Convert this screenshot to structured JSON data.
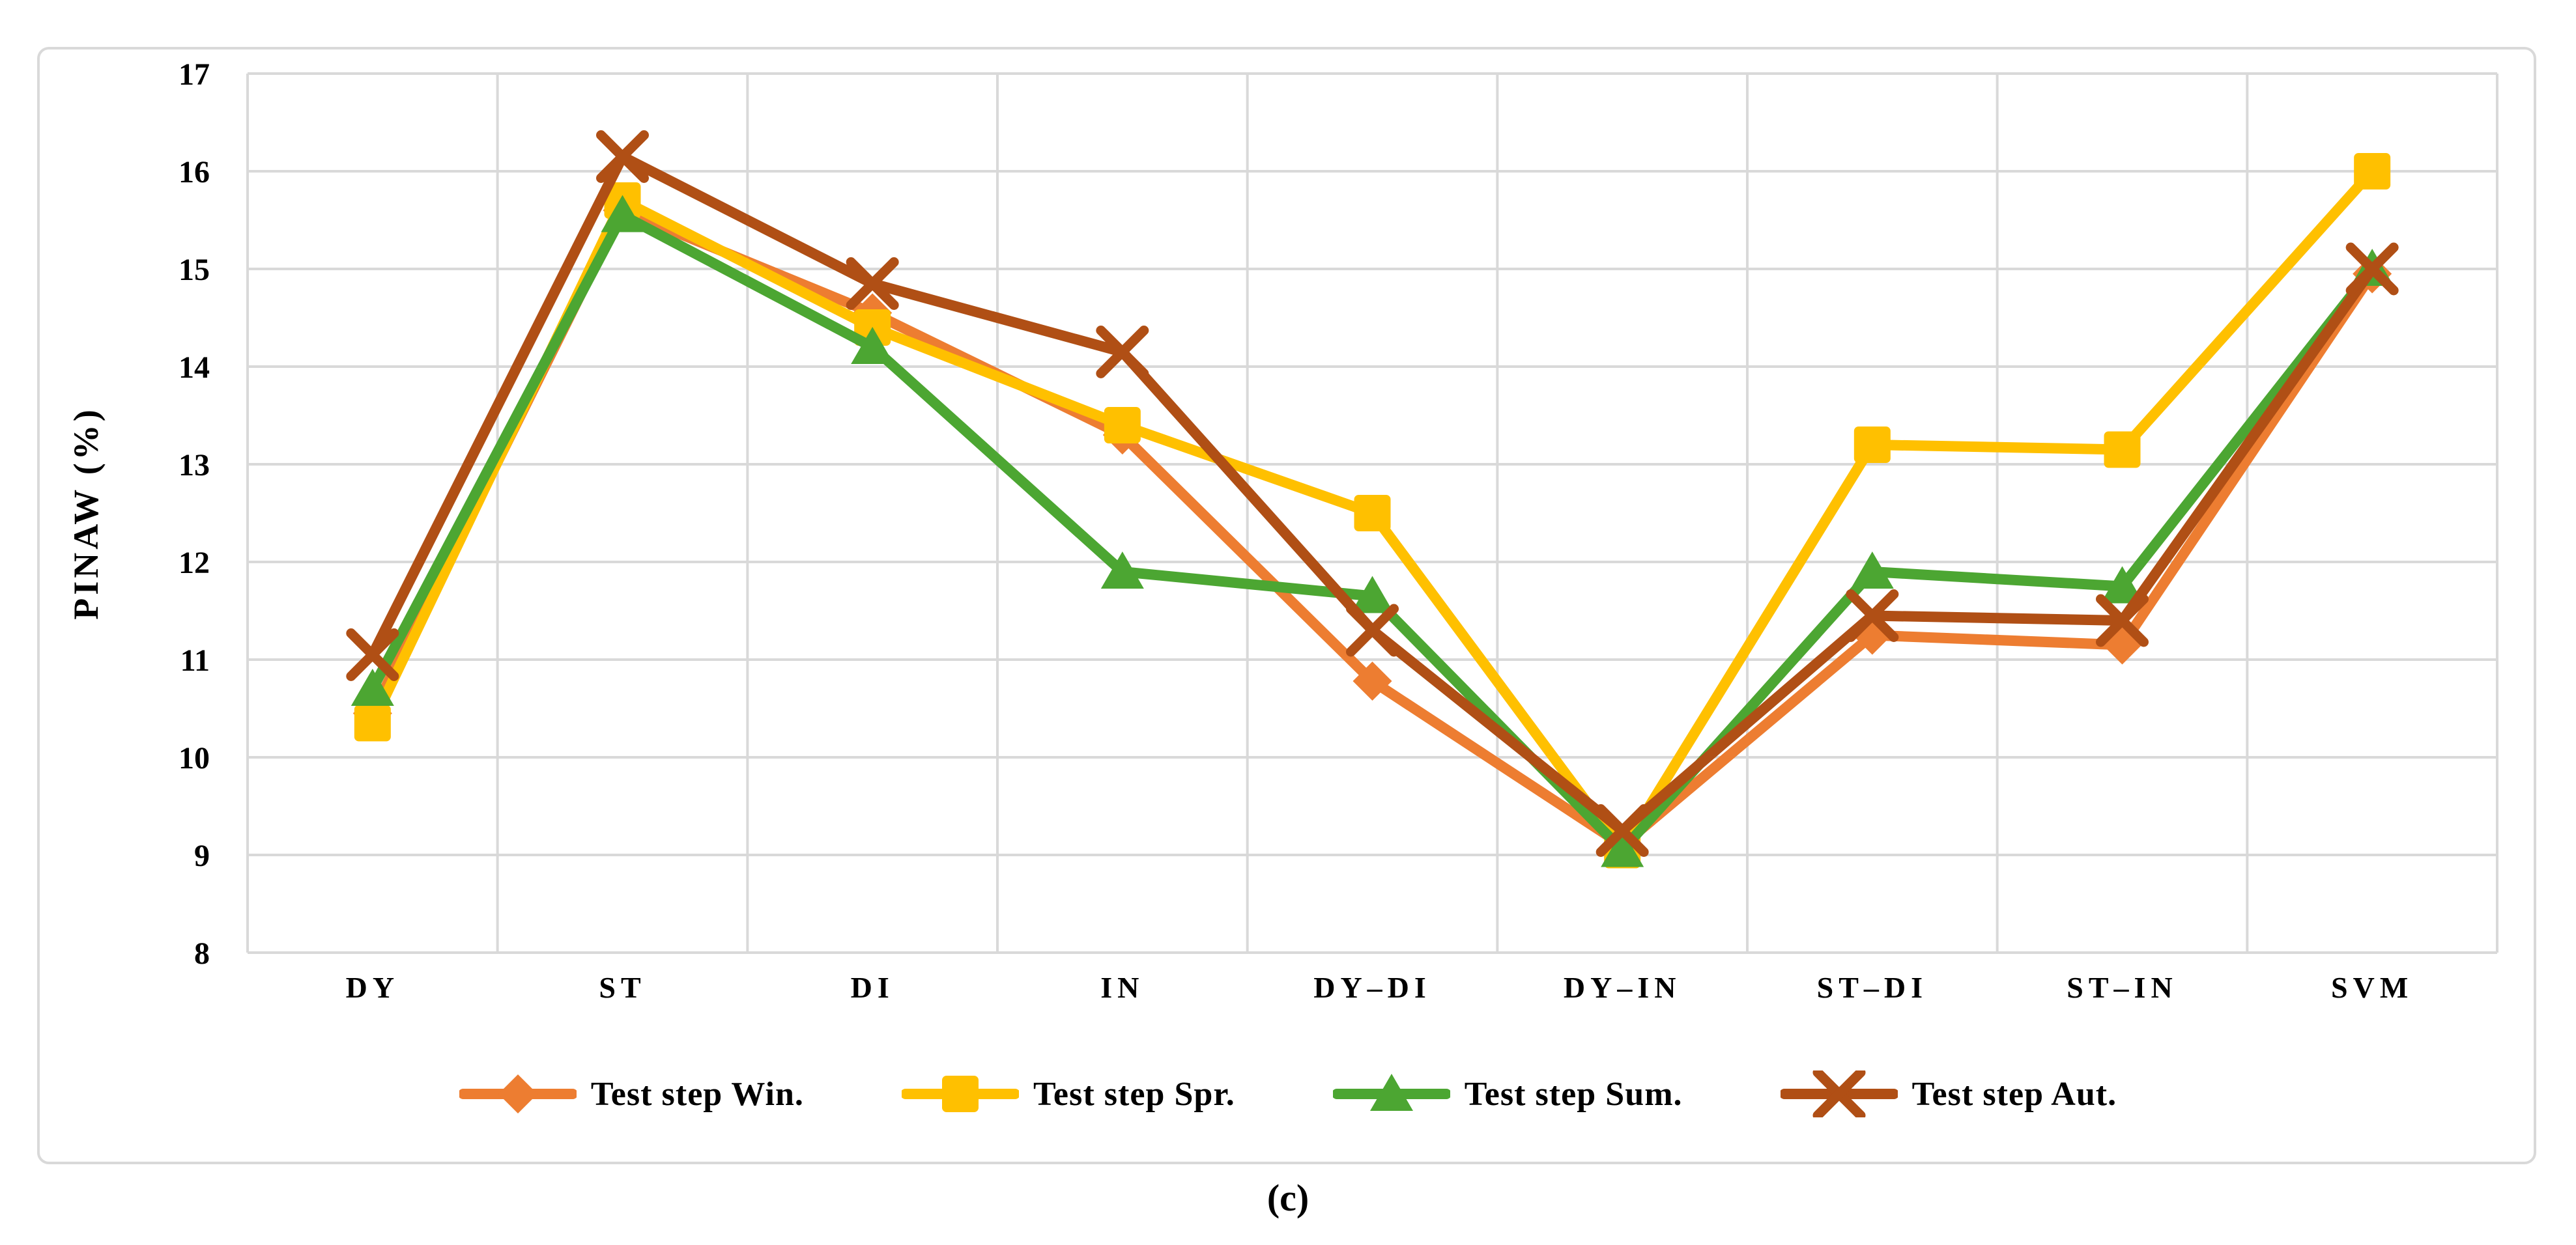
{
  "figure": {
    "caption": "(c)"
  },
  "chart_data": {
    "type": "line",
    "title": "",
    "xlabel": "",
    "ylabel": "PINAW (%)",
    "ylim": [
      8,
      17
    ],
    "ytick_step": 1,
    "grid": true,
    "legend_position": "bottom",
    "gridline_color": "#d9d9d9",
    "categories": [
      "DY",
      "ST",
      "DI",
      "IN",
      "DY–DI",
      "DY–IN",
      "ST–DI",
      "ST–IN",
      "SVM"
    ],
    "series": [
      {
        "name": "Test step Win.",
        "marker": "diamond",
        "color": "#ED7D31",
        "values": [
          10.45,
          15.6,
          14.55,
          13.3,
          10.78,
          9.1,
          11.25,
          11.15,
          14.95
        ]
      },
      {
        "name": "Test step Spr.",
        "marker": "square",
        "color": "#FFC000",
        "values": [
          10.35,
          15.7,
          14.4,
          13.4,
          12.5,
          9.05,
          13.2,
          13.15,
          16.0
        ]
      },
      {
        "name": "Test step Sum.",
        "marker": "triangle",
        "color": "#4CA632",
        "values": [
          10.7,
          15.55,
          14.2,
          11.9,
          11.65,
          9.05,
          11.9,
          11.75,
          15.0
        ]
      },
      {
        "name": "Test step Aut.",
        "marker": "x",
        "color": "#B04F15",
        "values": [
          11.05,
          16.15,
          14.85,
          14.15,
          11.3,
          9.25,
          11.45,
          11.4,
          15.0
        ]
      }
    ]
  }
}
